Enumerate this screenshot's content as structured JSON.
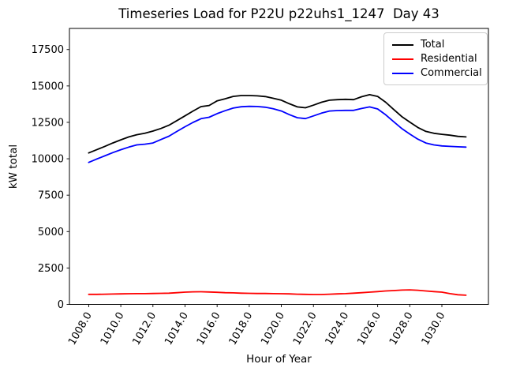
{
  "chart": {
    "title": "Timeseries Load for P22U p22uhs1_1247  Day 43",
    "xlabel": "Hour of Year",
    "ylabel": "kW total"
  },
  "chart_data": {
    "type": "line",
    "title": "Timeseries Load for P22U p22uhs1_1247  Day 43",
    "xlabel": "Hour of Year",
    "ylabel": "kW total",
    "grid": false,
    "legend_position": "upper right",
    "xlim": [
      1006.8,
      1032.9
    ],
    "ylim": [
      0,
      18950
    ],
    "xticks": {
      "values": [
        1008,
        1010,
        1012,
        1014,
        1016,
        1018,
        1020,
        1022,
        1024,
        1026,
        1028,
        1030
      ],
      "labels": [
        "1008.0",
        "1010.0",
        "1012.0",
        "1014.0",
        "1016.0",
        "1018.0",
        "1020.0",
        "1022.0",
        "1024.0",
        "1026.0",
        "1028.0",
        "1030.0"
      ],
      "rotation_deg": 60
    },
    "yticks": {
      "values": [
        0,
        2500,
        5000,
        7500,
        10000,
        12500,
        15000,
        17500
      ],
      "labels": [
        "0",
        "2500",
        "5000",
        "7500",
        "10000",
        "12500",
        "15000",
        "17500"
      ]
    },
    "x": [
      1008.0,
      1008.5,
      1009.0,
      1009.5,
      1010.0,
      1010.5,
      1011.0,
      1011.5,
      1012.0,
      1012.5,
      1013.0,
      1013.5,
      1014.0,
      1014.5,
      1015.0,
      1015.5,
      1016.0,
      1016.5,
      1017.0,
      1017.5,
      1018.0,
      1018.5,
      1019.0,
      1019.5,
      1020.0,
      1020.5,
      1021.0,
      1021.5,
      1022.0,
      1022.5,
      1023.0,
      1023.5,
      1024.0,
      1024.5,
      1025.0,
      1025.5,
      1026.0,
      1026.5,
      1027.0,
      1027.5,
      1028.0,
      1028.5,
      1029.0,
      1029.5,
      1030.0,
      1030.5,
      1031.0,
      1031.5
    ],
    "series": [
      {
        "name": "Total",
        "color": "#000000",
        "values": [
          10400,
          10620,
          10850,
          11080,
          11300,
          11500,
          11650,
          11750,
          11900,
          12080,
          12300,
          12620,
          12950,
          13280,
          13580,
          13660,
          13980,
          14120,
          14280,
          14340,
          14340,
          14320,
          14270,
          14150,
          14020,
          13780,
          13560,
          13500,
          13680,
          13880,
          14020,
          14060,
          14080,
          14060,
          14260,
          14400,
          14280,
          13880,
          13380,
          12900,
          12520,
          12150,
          11880,
          11750,
          11680,
          11620,
          11540,
          11500
        ]
      },
      {
        "name": "Residential",
        "color": "#ff0000",
        "values": [
          690,
          690,
          700,
          710,
          720,
          730,
          740,
          740,
          750,
          760,
          770,
          800,
          840,
          860,
          870,
          850,
          830,
          800,
          790,
          770,
          760,
          750,
          750,
          740,
          730,
          720,
          700,
          690,
          680,
          680,
          700,
          720,
          740,
          770,
          800,
          840,
          880,
          920,
          950,
          980,
          1000,
          970,
          920,
          880,
          840,
          740,
          660,
          630
        ]
      },
      {
        "name": "Commercial",
        "color": "#0000ff",
        "values": [
          9750,
          9980,
          10200,
          10420,
          10620,
          10800,
          10950,
          11000,
          11080,
          11320,
          11550,
          11880,
          12200,
          12500,
          12750,
          12850,
          13100,
          13300,
          13480,
          13570,
          13600,
          13590,
          13540,
          13430,
          13280,
          13030,
          12820,
          12760,
          12940,
          13130,
          13280,
          13310,
          13320,
          13320,
          13450,
          13560,
          13420,
          13020,
          12540,
          12080,
          11700,
          11350,
          11080,
          10950,
          10880,
          10850,
          10820,
          10800
        ]
      }
    ]
  }
}
